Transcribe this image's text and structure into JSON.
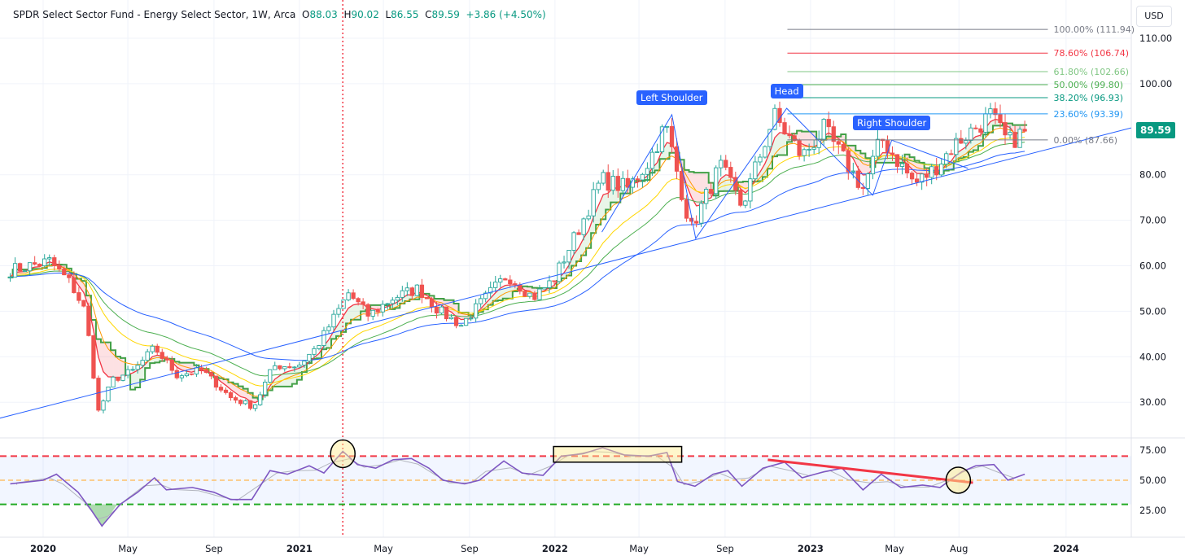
{
  "header": {
    "symbol": "SPDR Select Sector Fund - Energy Select Sector, 1W, Arca",
    "o_label": "O",
    "o": "88.03",
    "h_label": "H",
    "h": "90.02",
    "l_label": "L",
    "l": "86.55",
    "c_label": "C",
    "c": "89.59",
    "change": "+3.86 (+4.50%)"
  },
  "currency": "USD",
  "last_price": "89.59",
  "colors": {
    "up": "#26a69a",
    "down": "#ef5350",
    "accent": "#2962ff",
    "rsi": "#7e57c2"
  },
  "pattern_labels": [
    {
      "text": "Left Shoulder",
      "date": "2022-06-17",
      "price": 93.2
    },
    {
      "text": "Head",
      "date": "2022-11-28",
      "price": 94.6
    },
    {
      "text": "Right Shoulder",
      "date": "2023-04-27",
      "price": 87.6
    }
  ],
  "chart_data": [
    {
      "type": "candlestick",
      "title": "SPDR Select Sector Fund - Energy Select Sector, 1W, Arca",
      "ylim": [
        20,
        116
      ],
      "y_ticks": [
        "110.00",
        "100.00",
        "80.00",
        "70.00",
        "60.00",
        "50.00",
        "40.00",
        "30.00"
      ],
      "y_tick_values": [
        110,
        100,
        80,
        70,
        60,
        50,
        40,
        30
      ],
      "x_ticks": [
        {
          "label": "2020",
          "date": "2020-01-01"
        },
        {
          "label": "May",
          "date": "2020-05-01"
        },
        {
          "label": "Sep",
          "date": "2020-09-01"
        },
        {
          "label": "2021",
          "date": "2021-01-01"
        },
        {
          "label": "May",
          "date": "2021-05-01"
        },
        {
          "label": "Sep",
          "date": "2021-09-01"
        },
        {
          "label": "2022",
          "date": "2022-01-01"
        },
        {
          "label": "May",
          "date": "2022-05-01"
        },
        {
          "label": "Sep",
          "date": "2022-09-01"
        },
        {
          "label": "2023",
          "date": "2023-01-01"
        },
        {
          "label": "May",
          "date": "2023-05-01"
        },
        {
          "label": "Aug",
          "date": "2023-08-01"
        },
        {
          "label": "2024",
          "date": "2024-01-01"
        }
      ],
      "close_path": [
        [
          "2019-11-15",
          59
        ],
        [
          "2020-01-10",
          61
        ],
        [
          "2020-02-10",
          56
        ],
        [
          "2020-03-01",
          50
        ],
        [
          "2020-03-20",
          28
        ],
        [
          "2020-04-10",
          35
        ],
        [
          "2020-05-10",
          37
        ],
        [
          "2020-06-08",
          42
        ],
        [
          "2020-07-10",
          36
        ],
        [
          "2020-08-15",
          37
        ],
        [
          "2020-09-25",
          31
        ],
        [
          "2020-10-28",
          29
        ],
        [
          "2020-11-25",
          38
        ],
        [
          "2020-12-30",
          38
        ],
        [
          "2021-01-25",
          42
        ],
        [
          "2021-02-25",
          50
        ],
        [
          "2021-03-12",
          54
        ],
        [
          "2021-04-10",
          49
        ],
        [
          "2021-05-15",
          53
        ],
        [
          "2021-06-20",
          55
        ],
        [
          "2021-07-20",
          50
        ],
        [
          "2021-08-20",
          47
        ],
        [
          "2021-09-30",
          54
        ],
        [
          "2021-10-25",
          58
        ],
        [
          "2021-12-01",
          53
        ],
        [
          "2021-12-30",
          57
        ],
        [
          "2022-02-10",
          70
        ],
        [
          "2022-03-08",
          79
        ],
        [
          "2022-04-15",
          77
        ],
        [
          "2022-05-15",
          83
        ],
        [
          "2022-06-08",
          91
        ],
        [
          "2022-07-14",
          68
        ],
        [
          "2022-08-25",
          82
        ],
        [
          "2022-09-25",
          73
        ],
        [
          "2022-11-10",
          93
        ],
        [
          "2022-12-20",
          84
        ],
        [
          "2023-01-20",
          90
        ],
        [
          "2023-03-17",
          77
        ],
        [
          "2023-04-12",
          88
        ],
        [
          "2023-05-30",
          78
        ],
        [
          "2023-06-25",
          81
        ],
        [
          "2023-07-28",
          87
        ],
        [
          "2023-09-15",
          93
        ],
        [
          "2023-10-10",
          87
        ],
        [
          "2023-11-03",
          89.59
        ]
      ],
      "moving_averages": [
        {
          "period": 5,
          "color": "#f23645"
        },
        {
          "period": 10,
          "color": "#ff9800"
        },
        {
          "period": 20,
          "color": "#ffd600"
        },
        {
          "period": 30,
          "color": "#4caf50"
        },
        {
          "period": 50,
          "color": "#2962ff"
        }
      ],
      "fib_levels": [
        {
          "label": "100.00% (111.94)",
          "price": 111.94,
          "color": "#787b86"
        },
        {
          "label": "78.60% (106.74)",
          "price": 106.74,
          "color": "#f23645"
        },
        {
          "label": "61.80% (102.66)",
          "price": 102.66,
          "color": "#81c784"
        },
        {
          "label": "50.00% (99.80)",
          "price": 99.8,
          "color": "#4caf50"
        },
        {
          "label": "38.20% (96.93)",
          "price": 96.93,
          "color": "#089981"
        },
        {
          "label": "23.60% (93.39)",
          "price": 93.39,
          "color": "#2196f3"
        },
        {
          "label": "0.00% (87.66)",
          "price": 87.66,
          "color": "#787b86"
        }
      ],
      "fib_range": [
        "2022-11-29",
        "2023-12-06"
      ],
      "trendline": [
        [
          "2019-10-31",
          26.5
        ],
        [
          "2024-04-03",
          90.3
        ]
      ],
      "head_and_shoulders": [
        [
          "2022-03-09",
          67.4
        ],
        [
          "2022-06-17",
          93.2
        ],
        [
          "2022-07-21",
          66.0
        ],
        [
          "2022-11-28",
          94.6
        ],
        [
          "2023-03-31",
          75.5
        ],
        [
          "2023-04-27",
          87.6
        ],
        [
          "2023-08-14",
          81.4
        ]
      ],
      "vertical_marker": "2021-03-04"
    },
    {
      "type": "line",
      "indicator": "RSI",
      "ylim": [
        5,
        90
      ],
      "y_ticks": [
        "75.00",
        "50.00",
        "25.00"
      ],
      "y_tick_values": [
        75,
        50,
        25
      ],
      "bands": {
        "upper": 70,
        "middle": 50,
        "lower": 30
      },
      "values": [
        [
          "2019-11-15",
          47
        ],
        [
          "2020-01-01",
          50
        ],
        [
          "2020-01-20",
          55
        ],
        [
          "2020-02-20",
          40
        ],
        [
          "2020-03-10",
          25
        ],
        [
          "2020-03-25",
          12
        ],
        [
          "2020-04-20",
          30
        ],
        [
          "2020-05-15",
          40
        ],
        [
          "2020-06-08",
          52
        ],
        [
          "2020-06-25",
          42
        ],
        [
          "2020-08-01",
          44
        ],
        [
          "2020-09-01",
          40
        ],
        [
          "2020-09-25",
          34
        ],
        [
          "2020-10-25",
          34
        ],
        [
          "2020-11-20",
          58
        ],
        [
          "2020-12-15",
          55
        ],
        [
          "2021-01-15",
          62
        ],
        [
          "2021-02-05",
          56
        ],
        [
          "2021-03-04",
          74
        ],
        [
          "2021-03-25",
          63
        ],
        [
          "2021-04-20",
          60
        ],
        [
          "2021-05-15",
          67
        ],
        [
          "2021-06-10",
          68
        ],
        [
          "2021-07-05",
          60
        ],
        [
          "2021-07-25",
          50
        ],
        [
          "2021-08-25",
          47
        ],
        [
          "2021-09-15",
          50
        ],
        [
          "2021-10-20",
          66
        ],
        [
          "2021-11-15",
          56
        ],
        [
          "2021-12-15",
          54
        ],
        [
          "2022-01-10",
          70
        ],
        [
          "2022-02-10",
          72
        ],
        [
          "2022-03-10",
          77
        ],
        [
          "2022-04-10",
          71
        ],
        [
          "2022-05-15",
          70
        ],
        [
          "2022-06-10",
          73
        ],
        [
          "2022-06-25",
          49
        ],
        [
          "2022-07-20",
          45
        ],
        [
          "2022-08-15",
          55
        ],
        [
          "2022-09-05",
          58
        ],
        [
          "2022-09-25",
          45
        ],
        [
          "2022-10-25",
          60
        ],
        [
          "2022-11-25",
          65
        ],
        [
          "2022-12-20",
          52
        ],
        [
          "2023-01-20",
          57
        ],
        [
          "2023-02-15",
          60
        ],
        [
          "2023-03-17",
          42
        ],
        [
          "2023-04-12",
          55
        ],
        [
          "2023-05-10",
          44
        ],
        [
          "2023-06-10",
          46
        ],
        [
          "2023-07-05",
          44
        ],
        [
          "2023-08-05",
          57
        ],
        [
          "2023-08-25",
          62
        ],
        [
          "2023-09-20",
          63
        ],
        [
          "2023-10-10",
          50
        ],
        [
          "2023-11-03",
          55
        ]
      ],
      "annotations": {
        "circle_1": [
          "2021-03-04",
          72
        ],
        "box": [
          [
            "2021-12-30",
            65
          ],
          [
            "2022-07-01",
            78
          ]
        ],
        "divergence_line": [
          [
            "2022-11-01",
            67
          ],
          [
            "2023-08-21",
            48
          ]
        ],
        "circle_2": [
          "2023-07-31",
          50
        ]
      }
    }
  ]
}
